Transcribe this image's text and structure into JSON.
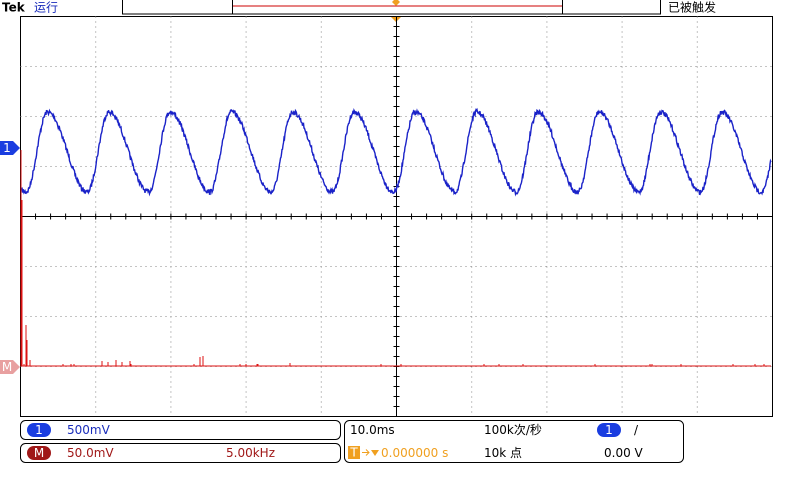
{
  "header": {
    "brand": "Tek",
    "status": "运行",
    "trigger_state": "已被触发"
  },
  "channel1": {
    "marker": "1",
    "scale": "500mV"
  },
  "math": {
    "marker": "M",
    "scale": "50.0mV",
    "frequency": "5.00kHz"
  },
  "horizontal": {
    "timebase": "10.0ms",
    "sample_rate": "100k次/秒",
    "trigger_icon": "T",
    "position": "0.000000 s",
    "record_length": "10k 点"
  },
  "trigger": {
    "source": "1",
    "slope": "/",
    "level": "0.00 V"
  }
}
